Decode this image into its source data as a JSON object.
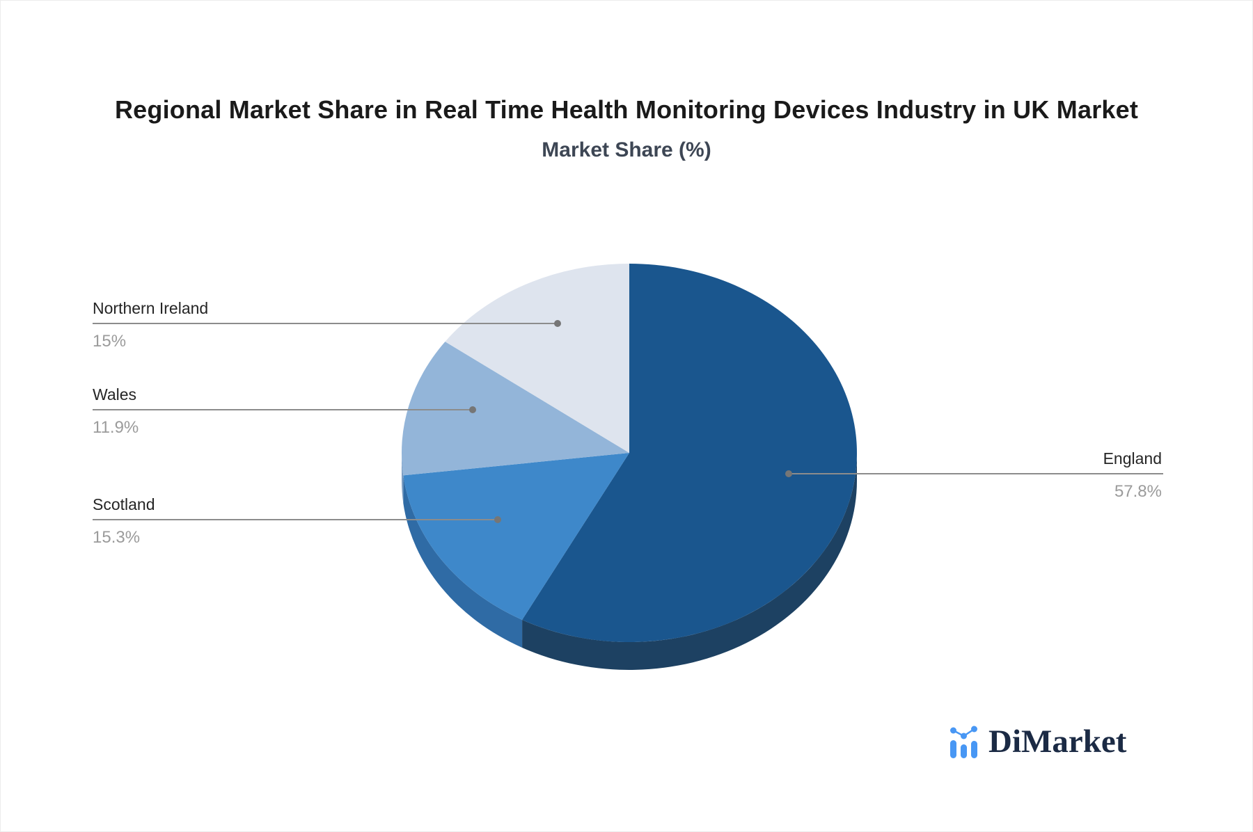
{
  "chart_data": {
    "type": "pie",
    "style": "3d-pie",
    "title": "Regional Market Share in Real Time Health Monitoring Devices Industry in UK Market",
    "subtitle": "Market Share (%)",
    "unit": "%",
    "start_angle": "12-oclock-clockwise",
    "legend": "none",
    "slices": [
      {
        "label": "England",
        "value": 57.8,
        "display_value": "57.8%",
        "color": "#1a568e",
        "side_color": "#1d4162"
      },
      {
        "label": "Scotland",
        "value": 15.3,
        "display_value": "15.3%",
        "color": "#3e88ca",
        "side_color": "#2f6ba5"
      },
      {
        "label": "Wales",
        "value": 11.9,
        "display_value": "11.9%",
        "color": "#93b5d9",
        "side_color": "#7a9cc2"
      },
      {
        "label": "Northern Ireland",
        "value": 15,
        "display_value": "15%",
        "color": "#dee4ee",
        "side_color": "#bcc6d6"
      }
    ],
    "label_style": {
      "name_color": "#252525",
      "value_color": "#9b9b9b",
      "leader_color": "#8c8c8c",
      "dot_color": "#767676"
    }
  },
  "branding": {
    "logo_text": "DiMarket",
    "logo_color": "#1b2a44",
    "icon": "bar-line-chart-icon",
    "icon_color": "#4897f4"
  }
}
